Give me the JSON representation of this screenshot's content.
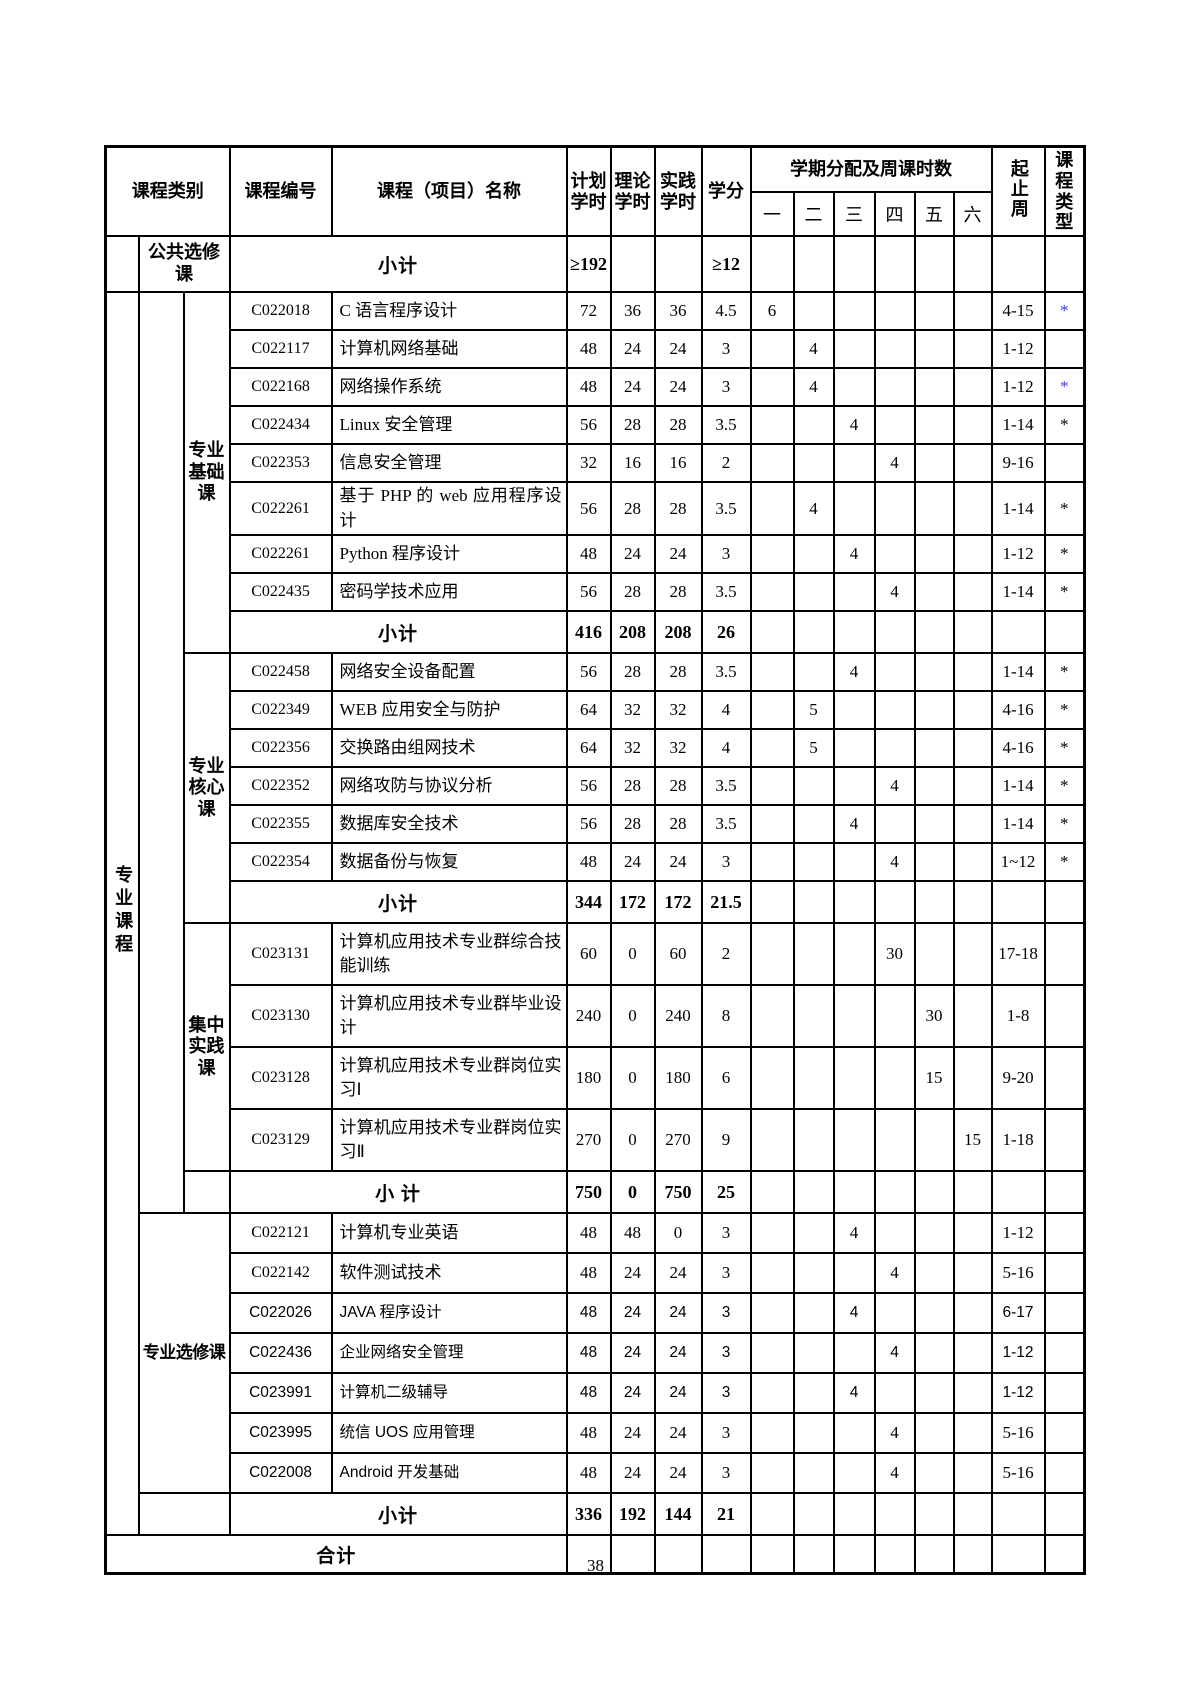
{
  "page_number": "38",
  "colors": {
    "asterisk_blue": "#3a3ae8",
    "text": "#000000"
  },
  "header": {
    "category": "课程类别",
    "code": "课程编号",
    "name": "课程（项目）名称",
    "plan": "计划学时",
    "theory": "理论学时",
    "practice": "实践学时",
    "credit": "学分",
    "sem_group": "学期分配及周课时数",
    "sem": [
      "一",
      "二",
      "三",
      "四",
      "五",
      "六"
    ],
    "weeks": "起止周",
    "type": "课程类型"
  },
  "sections": {
    "public": {
      "label": "公共选修课",
      "subtotal": {
        "label": "小计",
        "plan": "≥192",
        "theory": "",
        "practice": "",
        "credit": "≥12"
      }
    },
    "major_label": "专业课程",
    "basic": {
      "label": "专业基础课",
      "rows": [
        {
          "code": "C022018",
          "name": "C 语言程序设计",
          "plan": "72",
          "theory": "36",
          "practice": "36",
          "credit": "4.5",
          "s1": "6",
          "s2": "",
          "s3": "",
          "s4": "",
          "s5": "",
          "s6": "",
          "weeks": "4-15",
          "type": "*",
          "type_style": "blue",
          "sans": ""
        },
        {
          "code": "C022117",
          "name": "计算机网络基础",
          "plan": "48",
          "theory": "24",
          "practice": "24",
          "credit": "3",
          "s1": "",
          "s2": "4",
          "s3": "",
          "s4": "",
          "s5": "",
          "s6": "",
          "weeks": "1-12",
          "type": "",
          "type_style": "",
          "sans": ""
        },
        {
          "code": "C022168",
          "name": "网络操作系统",
          "plan": "48",
          "theory": "24",
          "practice": "24",
          "credit": "3",
          "s1": "",
          "s2": "4",
          "s3": "",
          "s4": "",
          "s5": "",
          "s6": "",
          "weeks": "1-12",
          "type": "*",
          "type_style": "blue",
          "sans": ""
        },
        {
          "code": "C022434",
          "name": "Linux 安全管理",
          "plan": "56",
          "theory": "28",
          "practice": "28",
          "credit": "3.5",
          "s1": "",
          "s2": "",
          "s3": "4",
          "s4": "",
          "s5": "",
          "s6": "",
          "weeks": "1-14",
          "type": "*",
          "type_style": "black",
          "sans": ""
        },
        {
          "code": "C022353",
          "name": "信息安全管理",
          "plan": "32",
          "theory": "16",
          "practice": "16",
          "credit": "2",
          "s1": "",
          "s2": "",
          "s3": "",
          "s4": "4",
          "s5": "",
          "s6": "",
          "weeks": "9-16",
          "type": "",
          "type_style": "",
          "sans": ""
        },
        {
          "code": "C022261",
          "name": "基于 PHP 的 web 应用程序设计",
          "plan": "56",
          "theory": "28",
          "practice": "28",
          "credit": "3.5",
          "s1": "",
          "s2": "4",
          "s3": "",
          "s4": "",
          "s5": "",
          "s6": "",
          "weeks": "1-14",
          "type": "*",
          "type_style": "black",
          "sans": ""
        },
        {
          "code": "C022261",
          "name": "Python 程序设计",
          "plan": "48",
          "theory": "24",
          "practice": "24",
          "credit": "3",
          "s1": "",
          "s2": "",
          "s3": "4",
          "s4": "",
          "s5": "",
          "s6": "",
          "weeks": "1-12",
          "type": "*",
          "type_style": "black",
          "sans": ""
        },
        {
          "code": "C022435",
          "name": "密码学技术应用",
          "plan": "56",
          "theory": "28",
          "practice": "28",
          "credit": "3.5",
          "s1": "",
          "s2": "",
          "s3": "",
          "s4": "4",
          "s5": "",
          "s6": "",
          "weeks": "1-14",
          "type": "*",
          "type_style": "black",
          "sans": ""
        }
      ],
      "subtotal": {
        "label": "小计",
        "plan": "416",
        "theory": "208",
        "practice": "208",
        "credit": "26"
      }
    },
    "core": {
      "label": "专业核心课",
      "rows": [
        {
          "code": "C022458",
          "name": "网络安全设备配置",
          "plan": "56",
          "theory": "28",
          "practice": "28",
          "credit": "3.5",
          "s1": "",
          "s2": "",
          "s3": "4",
          "s4": "",
          "s5": "",
          "s6": "",
          "weeks": "1-14",
          "type": "*",
          "type_style": "black",
          "sans": ""
        },
        {
          "code": "C022349",
          "name": "WEB 应用安全与防护",
          "plan": "64",
          "theory": "32",
          "practice": "32",
          "credit": "4",
          "s1": "",
          "s2": "5",
          "s3": "",
          "s4": "",
          "s5": "",
          "s6": "",
          "weeks": "4-16",
          "type": "*",
          "type_style": "black",
          "sans": ""
        },
        {
          "code": "C022356",
          "name": "交换路由组网技术",
          "plan": "64",
          "theory": "32",
          "practice": "32",
          "credit": "4",
          "s1": "",
          "s2": "5",
          "s3": "",
          "s4": "",
          "s5": "",
          "s6": "",
          "weeks": "4-16",
          "type": "*",
          "type_style": "black",
          "sans": ""
        },
        {
          "code": "C022352",
          "name": "网络攻防与协议分析",
          "plan": "56",
          "theory": "28",
          "practice": "28",
          "credit": "3.5",
          "s1": "",
          "s2": "",
          "s3": "",
          "s4": "4",
          "s5": "",
          "s6": "",
          "weeks": "1-14",
          "type": "*",
          "type_style": "black",
          "sans": ""
        },
        {
          "code": "C022355",
          "name": "数据库安全技术",
          "plan": "56",
          "theory": "28",
          "practice": "28",
          "credit": "3.5",
          "s1": "",
          "s2": "",
          "s3": "4",
          "s4": "",
          "s5": "",
          "s6": "",
          "weeks": "1-14",
          "type": "*",
          "type_style": "black",
          "sans": ""
        },
        {
          "code": "C022354",
          "name": "数据备份与恢复",
          "plan": "48",
          "theory": "24",
          "practice": "24",
          "credit": "3",
          "s1": "",
          "s2": "",
          "s3": "",
          "s4": "4",
          "s5": "",
          "s6": "",
          "weeks": "1~12",
          "type": "*",
          "type_style": "black",
          "sans": ""
        }
      ],
      "subtotal": {
        "label": "小计",
        "plan": "344",
        "theory": "172",
        "practice": "172",
        "credit": "21.5"
      }
    },
    "practice": {
      "label": "集中实践课",
      "rows": [
        {
          "code": "C023131",
          "name": "计算机应用技术专业群综合技能训练",
          "plan": "60",
          "theory": "0",
          "practice": "60",
          "credit": "2",
          "s1": "",
          "s2": "",
          "s3": "",
          "s4": "30",
          "s5": "",
          "s6": "",
          "weeks": "17-18",
          "type": "",
          "type_style": "",
          "sans": ""
        },
        {
          "code": "C023130",
          "name": "计算机应用技术专业群毕业设计",
          "plan": "240",
          "theory": "0",
          "practice": "240",
          "credit": "8",
          "s1": "",
          "s2": "",
          "s3": "",
          "s4": "",
          "s5": "30",
          "s6": "",
          "weeks": "1-8",
          "type": "",
          "type_style": "",
          "sans": ""
        },
        {
          "code": "C023128",
          "name": "计算机应用技术专业群岗位实习Ⅰ",
          "plan": "180",
          "theory": "0",
          "practice": "180",
          "credit": "6",
          "s1": "",
          "s2": "",
          "s3": "",
          "s4": "",
          "s5": "15",
          "s6": "",
          "weeks": "9-20",
          "type": "",
          "type_style": "",
          "sans": ""
        },
        {
          "code": "C023129",
          "name": "计算机应用技术专业群岗位实习Ⅱ",
          "plan": "270",
          "theory": "0",
          "practice": "270",
          "credit": "9",
          "s1": "",
          "s2": "",
          "s3": "",
          "s4": "",
          "s5": "",
          "s6": "15",
          "weeks": "1-18",
          "type": "",
          "type_style": "",
          "sans": ""
        }
      ],
      "subtotal": {
        "label": "小 计",
        "plan": "750",
        "theory": "0",
        "practice": "750",
        "credit": "25"
      }
    },
    "elective": {
      "label": "专业选修课",
      "rows": [
        {
          "code": "C022121",
          "name": "计算机专业英语",
          "plan": "48",
          "theory": "48",
          "practice": "0",
          "credit": "3",
          "s1": "",
          "s2": "",
          "s3": "4",
          "s4": "",
          "s5": "",
          "s6": "",
          "weeks": "1-12",
          "type": "",
          "type_style": "",
          "sans": ""
        },
        {
          "code": "C022142",
          "name": "软件测试技术",
          "plan": "48",
          "theory": "24",
          "practice": "24",
          "credit": "3",
          "s1": "",
          "s2": "",
          "s3": "",
          "s4": "4",
          "s5": "",
          "s6": "",
          "weeks": "5-16",
          "type": "",
          "type_style": "",
          "sans": ""
        },
        {
          "code": "C022026",
          "name": "JAVA 程序设计",
          "plan": "48",
          "theory": "24",
          "practice": "24",
          "credit": "3",
          "s1": "",
          "s2": "",
          "s3": "4",
          "s4": "",
          "s5": "",
          "s6": "",
          "weeks": "6-17",
          "type": "",
          "type_style": "",
          "sans": "all"
        },
        {
          "code": "C022436",
          "name": "企业网络安全管理",
          "plan": "48",
          "theory": "24",
          "practice": "24",
          "credit": "3",
          "s1": "",
          "s2": "",
          "s3": "",
          "s4": "4",
          "s5": "",
          "s6": "",
          "weeks": "1-12",
          "type": "",
          "type_style": "",
          "sans": "all"
        },
        {
          "code": "C023991",
          "name": "计算机二级辅导",
          "plan": "48",
          "theory": "24",
          "practice": "24",
          "credit": "3",
          "s1": "",
          "s2": "",
          "s3": "4",
          "s4": "",
          "s5": "",
          "s6": "",
          "weeks": "1-12",
          "type": "",
          "type_style": "",
          "sans": "all"
        },
        {
          "code": "C023995",
          "name": "统信 UOS 应用管理",
          "plan": "48",
          "theory": "24",
          "practice": "24",
          "credit": "3",
          "s1": "",
          "s2": "",
          "s3": "",
          "s4": "4",
          "s5": "",
          "s6": "",
          "weeks": "5-16",
          "type": "",
          "type_style": "",
          "sans": "label"
        },
        {
          "code": "C022008",
          "name": "Android 开发基础",
          "plan": "48",
          "theory": "24",
          "practice": "24",
          "credit": "3",
          "s1": "",
          "s2": "",
          "s3": "",
          "s4": "4",
          "s5": "",
          "s6": "",
          "weeks": "5-16",
          "type": "",
          "type_style": "",
          "sans": "label"
        }
      ],
      "subtotal": {
        "label": "小计",
        "plan": "336",
        "theory": "192",
        "practice": "144",
        "credit": "21"
      }
    },
    "total_label": "合计"
  }
}
